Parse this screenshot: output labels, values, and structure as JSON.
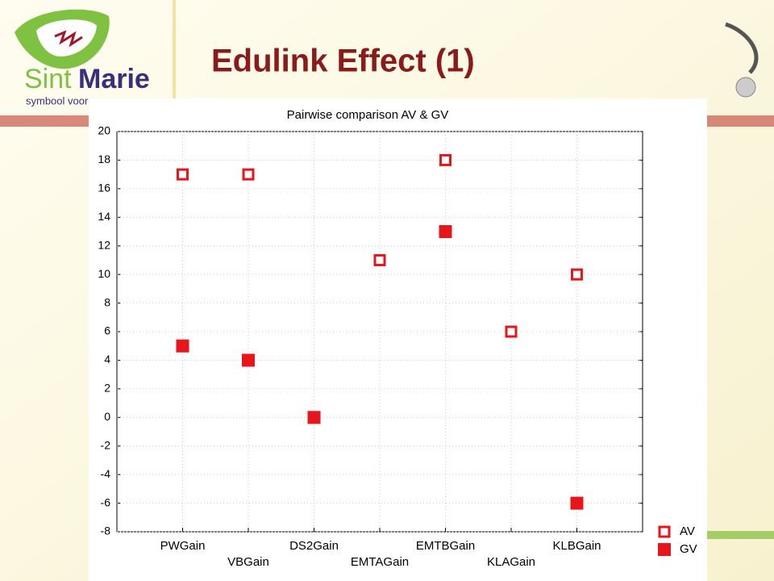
{
  "logo": {
    "words": [
      "Sint",
      "Marie"
    ],
    "tagline": "symbool voor"
  },
  "header": {
    "title": "Edulink Effect (1)"
  },
  "chart_data": {
    "type": "scatter",
    "title": "Pairwise comparison AV & GV",
    "categories": [
      "PWGain",
      "VBGain",
      "DS2Gain",
      "EMTAGain",
      "EMTBGain",
      "KLAGain",
      "KLBGain"
    ],
    "series": [
      {
        "name": "AV",
        "color": "#e8151b",
        "marker": "hollow-square",
        "values": [
          17,
          17,
          null,
          11,
          18,
          6,
          10
        ]
      },
      {
        "name": "GV",
        "color": "#e8151b",
        "marker": "filled-square",
        "values": [
          5,
          4,
          0,
          null,
          13,
          null,
          -6
        ]
      }
    ],
    "ylim": [
      -8,
      20
    ],
    "yticks": [
      -8,
      -6,
      -4,
      -2,
      0,
      2,
      4,
      6,
      8,
      10,
      12,
      14,
      16,
      18,
      20
    ],
    "grid": true,
    "legend": "right"
  }
}
